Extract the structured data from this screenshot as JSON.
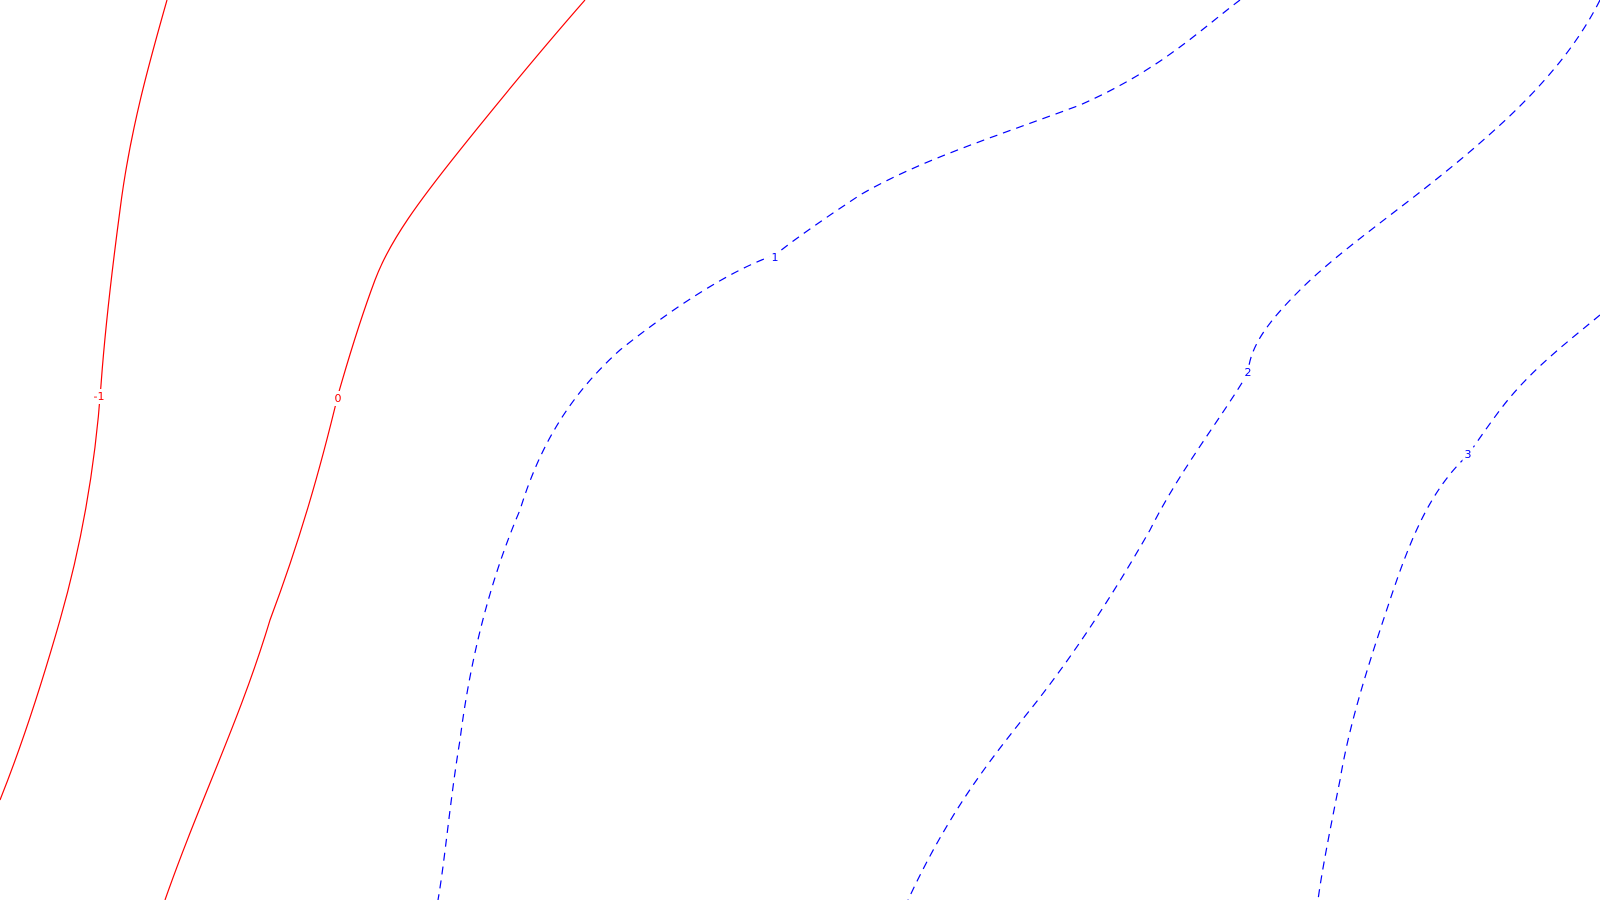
{
  "chart_data": {
    "type": "contour",
    "title": "",
    "xlabel": "",
    "ylabel": "",
    "grid": false,
    "legend": "none",
    "colors": {
      "negative_or_zero": "#ff0000",
      "positive": "#0000ff",
      "background": "#ffffff"
    },
    "line_styles": {
      "negative_or_zero": "solid",
      "positive": "dashed"
    },
    "levels": [
      {
        "value": -1,
        "label": "-1",
        "color": "#ff0000",
        "style": "solid"
      },
      {
        "value": 0,
        "label": "0",
        "color": "#ff0000",
        "style": "solid"
      },
      {
        "value": 1,
        "label": "1",
        "color": "#0000ff",
        "style": "dashed"
      },
      {
        "value": 2,
        "label": "2",
        "color": "#0000ff",
        "style": "dashed"
      },
      {
        "value": 3,
        "label": "3",
        "color": "#0000ff",
        "style": "dashed"
      }
    ]
  }
}
